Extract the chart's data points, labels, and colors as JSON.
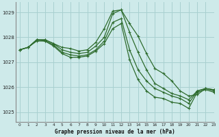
{
  "title": "Graphe pression niveau de la mer (hPa)",
  "background_color": "#ceeaea",
  "grid_color": "#a8d0d0",
  "line_color": "#2d6b2d",
  "xlim": [
    -0.5,
    23
  ],
  "ylim": [
    1024.6,
    1029.4
  ],
  "yticks": [
    1025,
    1026,
    1027,
    1028,
    1029
  ],
  "xticks": [
    0,
    1,
    2,
    3,
    4,
    5,
    6,
    7,
    8,
    9,
    10,
    11,
    12,
    13,
    14,
    15,
    16,
    17,
    18,
    19,
    20,
    21,
    22,
    23
  ],
  "series": [
    [
      1027.5,
      1027.6,
      1027.9,
      1027.9,
      1027.75,
      1027.6,
      1027.55,
      1027.45,
      1027.5,
      1027.8,
      1028.35,
      1029.05,
      1029.1,
      1028.55,
      1028.05,
      1027.35,
      1026.75,
      1026.55,
      1026.25,
      1025.85,
      1025.65,
      1025.7,
      1025.95,
      1025.9
    ],
    [
      1027.5,
      1027.6,
      1027.9,
      1027.9,
      1027.75,
      1027.5,
      1027.4,
      1027.35,
      1027.4,
      1027.65,
      1028.0,
      1028.95,
      1029.1,
      1028.2,
      1027.4,
      1026.7,
      1026.15,
      1025.95,
      1025.75,
      1025.65,
      1025.5,
      1025.85,
      1025.95,
      1025.9
    ],
    [
      1027.5,
      1027.6,
      1027.9,
      1027.85,
      1027.7,
      1027.4,
      1027.3,
      1027.25,
      1027.3,
      1027.5,
      1027.85,
      1028.6,
      1028.75,
      1027.5,
      1026.7,
      1026.25,
      1025.95,
      1025.8,
      1025.65,
      1025.55,
      1025.35,
      1025.85,
      1025.95,
      1025.85
    ],
    [
      1027.5,
      1027.6,
      1027.85,
      1027.85,
      1027.65,
      1027.35,
      1027.2,
      1027.2,
      1027.25,
      1027.45,
      1027.75,
      1028.35,
      1028.55,
      1027.1,
      1026.3,
      1025.85,
      1025.6,
      1025.55,
      1025.4,
      1025.35,
      1025.15,
      1025.8,
      1025.9,
      1025.8
    ]
  ]
}
